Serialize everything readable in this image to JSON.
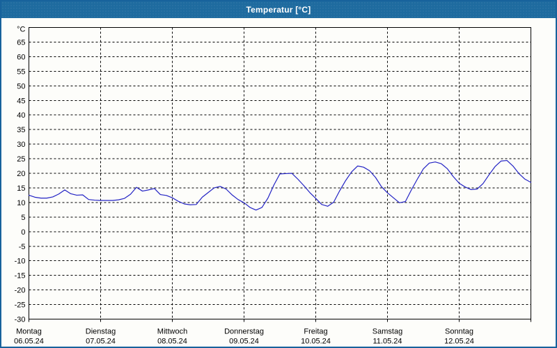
{
  "window": {
    "title": "Temperatur [°C]"
  },
  "colors": {
    "titlebar": "#1e6b9f",
    "window_border": "#17629c",
    "plot_background": "#ffffff",
    "grid": "#000000",
    "line": "#2222c4",
    "label_text": "#000000",
    "title_text": "#ffffff"
  },
  "chart_data": {
    "type": "line",
    "title": "Temperatur [°C]",
    "y_unit": "°C",
    "y_min": -30,
    "y_max": 70,
    "y_tick_step": 5,
    "y_ticks": [
      65,
      60,
      55,
      50,
      45,
      40,
      35,
      30,
      25,
      20,
      15,
      10,
      5,
      0,
      -5,
      -10,
      -15,
      -20,
      -25,
      -30
    ],
    "grid": "dashed",
    "legend": "none",
    "days": [
      {
        "name": "Montag",
        "date": "06.05.24"
      },
      {
        "name": "Dienstag",
        "date": "07.05.24"
      },
      {
        "name": "Mittwoch",
        "date": "08.05.24"
      },
      {
        "name": "Donnerstag",
        "date": "09.05.24"
      },
      {
        "name": "Freitag",
        "date": "10.05.24"
      },
      {
        "name": "Samstag",
        "date": "11.05.24"
      },
      {
        "name": "Sonntag",
        "date": "12.05.24"
      }
    ],
    "sample_interval_hours": 2,
    "series": [
      {
        "name": "Temperatur",
        "color": "#2222c4",
        "values": [
          12.5,
          11.8,
          11.5,
          11.5,
          11.9,
          12.9,
          14.3,
          13.0,
          12.5,
          12.6,
          11.0,
          10.8,
          10.7,
          10.7,
          10.7,
          10.9,
          11.4,
          12.8,
          15.2,
          13.9,
          14.3,
          14.8,
          12.7,
          12.4,
          11.6,
          10.4,
          9.5,
          9.2,
          9.3,
          11.8,
          13.4,
          15.0,
          15.5,
          14.6,
          12.6,
          11.0,
          9.9,
          8.3,
          7.4,
          8.3,
          11.5,
          16.0,
          19.8,
          19.9,
          20.0,
          18.0,
          15.8,
          13.4,
          11.4,
          9.3,
          8.7,
          10.1,
          14.0,
          17.5,
          20.5,
          22.5,
          22.1,
          20.9,
          18.6,
          15.4,
          13.3,
          11.6,
          9.9,
          10.3,
          14.3,
          18.0,
          21.5,
          23.5,
          23.9,
          23.3,
          21.6,
          18.9,
          16.6,
          15.3,
          14.4,
          14.6,
          16.5,
          19.5,
          22.3,
          24.2,
          24.4,
          22.5,
          19.9,
          18.0,
          16.9
        ]
      }
    ]
  }
}
